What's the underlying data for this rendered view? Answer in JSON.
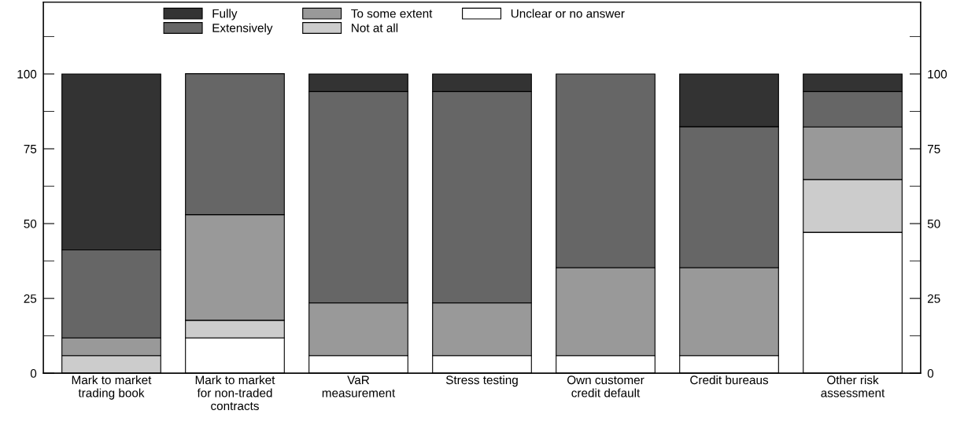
{
  "chart_data": {
    "type": "bar",
    "stacked": true,
    "categories": [
      "Mark to market\ntrading book",
      "Mark to market\nfor non-traded\ncontracts",
      "VaR\nmeasurement",
      "Stress testing",
      "Own customer\ncredit default",
      "Credit bureaus",
      "Other risk\nassessment"
    ],
    "series": [
      {
        "name": "Unclear or no answer",
        "color": "#ffffff",
        "values": [
          0,
          11.8,
          5.9,
          5.9,
          5.9,
          5.9,
          47.1
        ]
      },
      {
        "name": "Not at all",
        "color": "#cccccc",
        "values": [
          5.9,
          5.9,
          0,
          0,
          0,
          0,
          17.6
        ]
      },
      {
        "name": "To some extent",
        "color": "#999999",
        "values": [
          5.9,
          35.3,
          17.6,
          17.6,
          29.4,
          29.4,
          17.6
        ]
      },
      {
        "name": "Extensively",
        "color": "#666666",
        "values": [
          29.4,
          47.1,
          70.6,
          70.6,
          64.7,
          47.1,
          11.8
        ]
      },
      {
        "name": "Fully",
        "color": "#333333",
        "values": [
          58.8,
          0,
          5.9,
          5.9,
          0,
          17.6,
          5.9
        ]
      }
    ],
    "ylim": [
      0,
      124
    ],
    "yticks": [
      0,
      {
        "value": 12.5,
        "label": null
      },
      25,
      {
        "value": 37.5,
        "label": null
      },
      50,
      {
        "value": 62.5,
        "label": null
      },
      75,
      {
        "value": 87.5,
        "label": null
      },
      100,
      {
        "value": 112.5,
        "label": null
      }
    ],
    "y2lim": [
      0,
      124
    ],
    "y2ticks": [
      0,
      {
        "value": 12.5,
        "label": null
      },
      25,
      {
        "value": 37.5,
        "label": null
      },
      50,
      {
        "value": 62.5,
        "label": null
      },
      75,
      {
        "value": 87.5,
        "label": null
      },
      100,
      {
        "value": 112.5,
        "label": null
      }
    ],
    "grid": false,
    "legend": "top"
  }
}
